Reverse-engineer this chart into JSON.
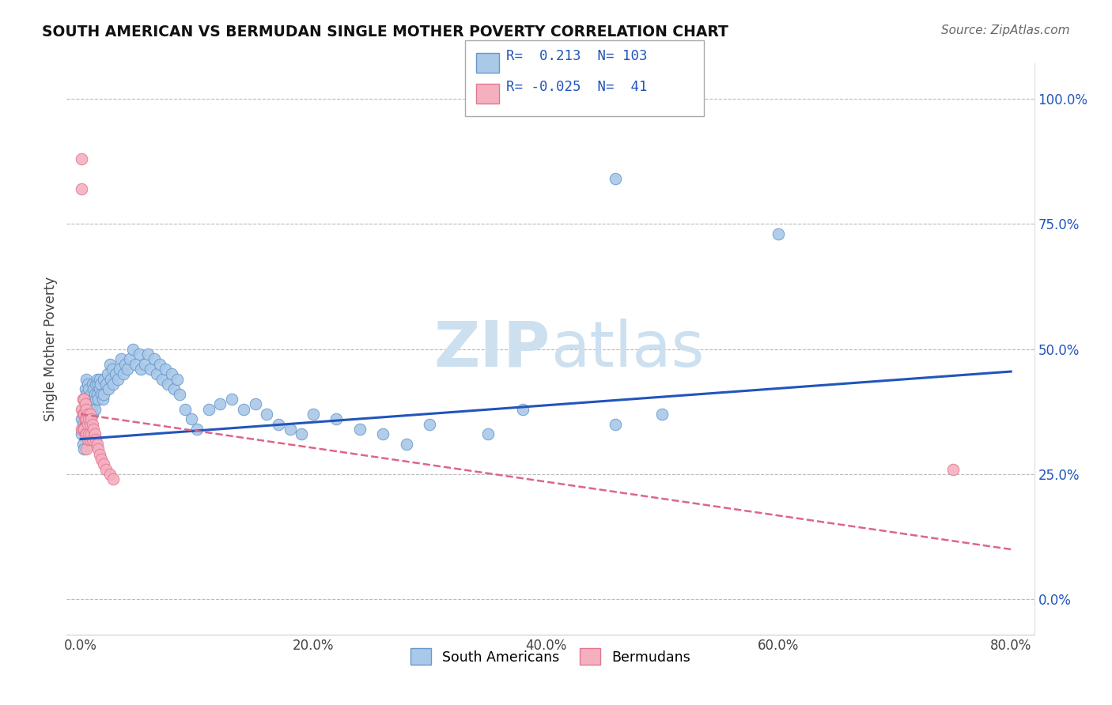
{
  "title": "SOUTH AMERICAN VS BERMUDAN SINGLE MOTHER POVERTY CORRELATION CHART",
  "source": "Source: ZipAtlas.com",
  "xlabel_ticks": [
    "0.0%",
    "20.0%",
    "40.0%",
    "60.0%",
    "80.0%"
  ],
  "xlabel_tick_vals": [
    0.0,
    0.2,
    0.4,
    0.6,
    0.8
  ],
  "ylabel_ticks": [
    "0.0%",
    "25.0%",
    "50.0%",
    "75.0%",
    "100.0%"
  ],
  "ylabel_tick_vals": [
    0.0,
    0.25,
    0.5,
    0.75,
    1.0
  ],
  "ylabel": "Single Mother Poverty",
  "blue_R": 0.213,
  "blue_N": 103,
  "pink_R": -0.025,
  "pink_N": 41,
  "blue_color": "#aac8e8",
  "pink_color": "#f5b0c0",
  "blue_edge": "#6699cc",
  "pink_edge": "#e07890",
  "blue_line_color": "#2255bb",
  "pink_line_color": "#dd6688",
  "watermark_color": "#cce0f0",
  "legend_blue_label": "South Americans",
  "legend_pink_label": "Bermudans",
  "blue_line": [
    0.0,
    0.32,
    0.8,
    0.455
  ],
  "pink_line": [
    0.0,
    0.37,
    0.8,
    0.1
  ],
  "xlim": [
    -0.012,
    0.82
  ],
  "ylim": [
    -0.07,
    1.07
  ],
  "figsize": [
    14.06,
    8.92
  ],
  "dpi": 100,
  "blue_scatter_x": [
    0.001,
    0.001,
    0.002,
    0.002,
    0.002,
    0.003,
    0.003,
    0.003,
    0.003,
    0.004,
    0.004,
    0.004,
    0.005,
    0.005,
    0.005,
    0.005,
    0.006,
    0.006,
    0.006,
    0.007,
    0.007,
    0.007,
    0.008,
    0.008,
    0.008,
    0.009,
    0.009,
    0.01,
    0.01,
    0.01,
    0.011,
    0.011,
    0.012,
    0.012,
    0.013,
    0.013,
    0.014,
    0.014,
    0.015,
    0.015,
    0.016,
    0.016,
    0.017,
    0.018,
    0.019,
    0.02,
    0.02,
    0.022,
    0.023,
    0.024,
    0.025,
    0.026,
    0.027,
    0.028,
    0.03,
    0.032,
    0.033,
    0.035,
    0.037,
    0.038,
    0.04,
    0.042,
    0.045,
    0.047,
    0.05,
    0.052,
    0.055,
    0.058,
    0.06,
    0.063,
    0.065,
    0.068,
    0.07,
    0.073,
    0.075,
    0.078,
    0.08,
    0.083,
    0.085,
    0.09,
    0.095,
    0.1,
    0.11,
    0.12,
    0.13,
    0.14,
    0.15,
    0.16,
    0.17,
    0.18,
    0.19,
    0.2,
    0.22,
    0.24,
    0.26,
    0.28,
    0.3,
    0.35,
    0.38,
    0.46,
    0.46,
    0.5,
    0.6
  ],
  "blue_scatter_y": [
    0.36,
    0.33,
    0.38,
    0.35,
    0.31,
    0.4,
    0.37,
    0.34,
    0.3,
    0.42,
    0.38,
    0.35,
    0.44,
    0.41,
    0.38,
    0.35,
    0.43,
    0.4,
    0.37,
    0.42,
    0.39,
    0.36,
    0.4,
    0.38,
    0.35,
    0.41,
    0.38,
    0.43,
    0.4,
    0.37,
    0.42,
    0.39,
    0.41,
    0.38,
    0.43,
    0.4,
    0.44,
    0.41,
    0.43,
    0.4,
    0.44,
    0.42,
    0.43,
    0.41,
    0.4,
    0.44,
    0.41,
    0.43,
    0.45,
    0.42,
    0.47,
    0.44,
    0.46,
    0.43,
    0.45,
    0.44,
    0.46,
    0.48,
    0.45,
    0.47,
    0.46,
    0.48,
    0.5,
    0.47,
    0.49,
    0.46,
    0.47,
    0.49,
    0.46,
    0.48,
    0.45,
    0.47,
    0.44,
    0.46,
    0.43,
    0.45,
    0.42,
    0.44,
    0.41,
    0.38,
    0.36,
    0.34,
    0.38,
    0.39,
    0.4,
    0.38,
    0.39,
    0.37,
    0.35,
    0.34,
    0.33,
    0.37,
    0.36,
    0.34,
    0.33,
    0.31,
    0.35,
    0.33,
    0.38,
    0.35,
    0.84,
    0.37,
    0.73
  ],
  "pink_scatter_x": [
    0.001,
    0.001,
    0.001,
    0.001,
    0.002,
    0.002,
    0.002,
    0.003,
    0.003,
    0.003,
    0.004,
    0.004,
    0.004,
    0.005,
    0.005,
    0.005,
    0.005,
    0.006,
    0.006,
    0.006,
    0.007,
    0.007,
    0.008,
    0.008,
    0.008,
    0.009,
    0.009,
    0.01,
    0.01,
    0.011,
    0.012,
    0.013,
    0.014,
    0.015,
    0.016,
    0.018,
    0.02,
    0.022,
    0.025,
    0.028,
    0.75
  ],
  "pink_scatter_y": [
    0.88,
    0.82,
    0.38,
    0.34,
    0.4,
    0.37,
    0.34,
    0.4,
    0.37,
    0.34,
    0.39,
    0.36,
    0.33,
    0.38,
    0.36,
    0.33,
    0.3,
    0.37,
    0.35,
    0.32,
    0.36,
    0.33,
    0.37,
    0.35,
    0.32,
    0.36,
    0.33,
    0.35,
    0.32,
    0.34,
    0.33,
    0.32,
    0.31,
    0.3,
    0.29,
    0.28,
    0.27,
    0.26,
    0.25,
    0.24,
    0.26
  ]
}
